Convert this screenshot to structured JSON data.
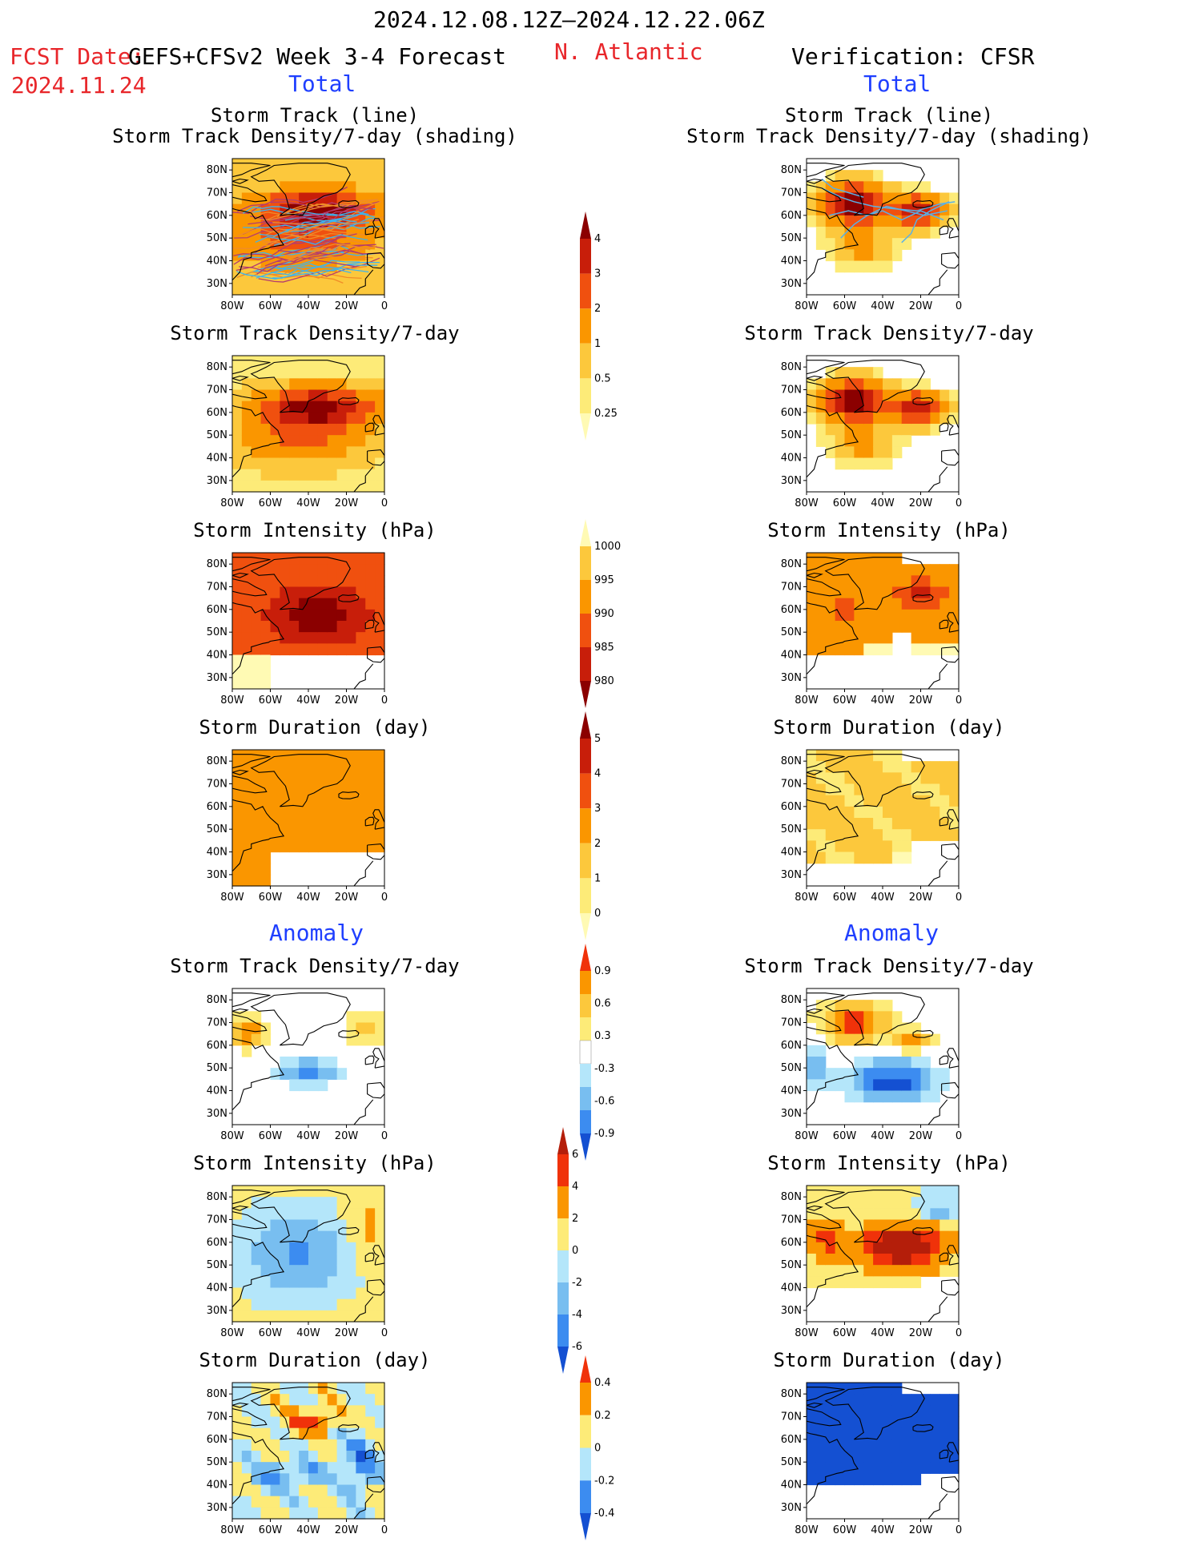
{
  "header": {
    "period": "2024.12.08.12Z–2024.12.22.06Z",
    "fcst_label": "FCST Date:",
    "model": "GEFS+CFSv2 Week 3-4 Forecast",
    "fcst_date": "2024.11.24",
    "region": "N. Atlantic",
    "verification": "Verification: CFSR"
  },
  "sections": {
    "total": "Total",
    "anomaly": "Anomaly"
  },
  "panel_titles": {
    "track_line": "Storm Track (line)",
    "track_shading": "Storm Track Density/7-day (shading)",
    "density": "Storm Track Density/7-day",
    "intensity": "Storm Intensity (hPa)",
    "duration": "Storm Duration (day)"
  },
  "axes": {
    "lat_labels": [
      "80N",
      "70N",
      "60N",
      "50N",
      "40N",
      "30N"
    ],
    "lon_labels": [
      "80W",
      "60W",
      "40W",
      "20W",
      "0"
    ]
  },
  "colorbars": {
    "density_total": {
      "labels": [
        "4",
        "3",
        "2",
        "1",
        "0.5",
        "0.25"
      ],
      "colors": [
        "#8b0000",
        "#c81e0a",
        "#f0500f",
        "#fa9600",
        "#fcc83c",
        "#fdeb78",
        "#fffab4"
      ]
    },
    "intensity_total": {
      "labels": [
        "1000",
        "995",
        "990",
        "985",
        "980"
      ],
      "colors": [
        "#fffab4",
        "#fcc83c",
        "#fa9600",
        "#f0500f",
        "#c81e0a",
        "#8b0000"
      ]
    },
    "duration_total": {
      "labels": [
        "5",
        "4",
        "3",
        "2",
        "1",
        "0"
      ],
      "colors": [
        "#8b0000",
        "#c81e0a",
        "#f0500f",
        "#fa9600",
        "#fcc83c",
        "#fdeb78",
        "#fffab4"
      ]
    },
    "density_anom": {
      "labels": [
        "0.9",
        "0.6",
        "0.3",
        "-0.3",
        "-0.6",
        "-0.9"
      ],
      "colors": [
        "#f0320a",
        "#fa9600",
        "#fcc83c",
        "#fdeb78",
        "#ffffff",
        "#b4e6fa",
        "#78bef0",
        "#3c8cf0",
        "#1450d2"
      ]
    },
    "intensity_anom": {
      "labels": [
        "6",
        "4",
        "2",
        "0",
        "-2",
        "-4",
        "-6"
      ],
      "colors": [
        "#b41e0a",
        "#f0320a",
        "#fa9600",
        "#fdeb78",
        "#b4e6fa",
        "#78bef0",
        "#3c8cf0",
        "#1450d2"
      ]
    },
    "duration_anom": {
      "labels": [
        "0.4",
        "0.2",
        "0",
        "-0.2",
        "-0.4"
      ],
      "colors": [
        "#f0320a",
        "#fa9600",
        "#fdeb78",
        "#b4e6fa",
        "#3c8cf0",
        "#1450d2"
      ]
    }
  }
}
